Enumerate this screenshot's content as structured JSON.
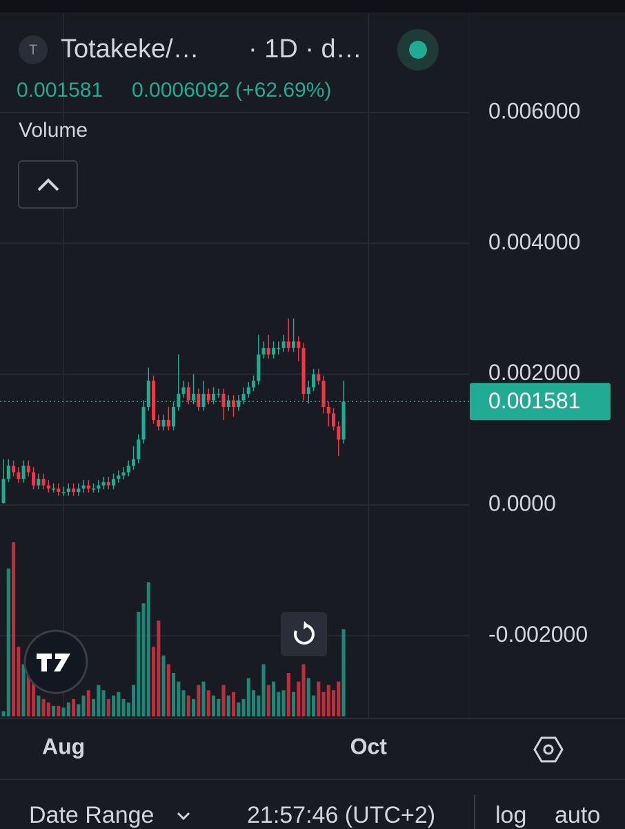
{
  "header": {
    "icon_letter": "T",
    "symbol": "Totakeke/…",
    "interval": "· 1D · d…",
    "change": "0.0006092 (+62.69%)",
    "date_range": "Date Range",
    "time": "21:57:46 (UTC+2)",
    "log": "log",
    "auto": "auto"
  },
  "chart_data": {
    "type": "candlestick",
    "up_color": "#22ab94",
    "down_color": "#f23645",
    "grid": true,
    "last_price": {
      "value": 0.001581,
      "label": "0.001581"
    },
    "x": [
      0,
      1,
      2,
      3,
      4,
      5,
      6,
      7,
      8,
      9,
      10,
      11,
      12,
      13,
      14,
      15,
      16,
      17,
      18,
      19,
      20,
      21,
      22,
      23,
      24,
      25,
      26,
      27,
      28,
      29,
      30,
      31,
      32,
      33,
      34,
      35,
      36,
      37,
      38,
      39,
      40,
      41,
      42,
      43,
      44,
      45,
      46,
      47,
      48,
      49,
      50,
      51,
      52,
      53,
      54,
      55,
      56,
      57,
      58,
      59,
      60,
      61,
      62,
      63,
      64,
      65,
      66,
      67,
      68
    ],
    "xlim": [
      -0.7,
      93.1
    ],
    "xticks": [
      {
        "value": 12,
        "label": "Aug"
      },
      {
        "value": 73,
        "label": "Oct"
      }
    ],
    "ylim": [
      -0.003264,
      0.00751
    ],
    "yticks": [
      {
        "value": 0.006,
        "label": "0.006000"
      },
      {
        "value": 0.004,
        "label": "0.004000"
      },
      {
        "value": 0.002,
        "label": "0.002000"
      },
      {
        "value": 0,
        "label": "0.0000"
      },
      {
        "value": -0.002,
        "label": "-0.002000"
      }
    ],
    "open": [
      3e-05,
      0.0004,
      0.0006,
      0.0005,
      0.0004,
      0.0006,
      0.0005,
      0.0003,
      0.0004,
      0.0003,
      0.00025,
      0.00025,
      0.0002,
      0.0002,
      0.00025,
      0.0002,
      0.00025,
      0.0003,
      0.00025,
      0.00025,
      0.0003,
      0.00035,
      0.0003,
      0.0004,
      0.00045,
      0.0005,
      0.0006,
      0.0007,
      0.001,
      0.0015,
      0.0019,
      0.0013,
      0.0012,
      0.0013,
      0.0012,
      0.0015,
      0.0017,
      0.0018,
      0.0016,
      0.0017,
      0.0015,
      0.0017,
      0.0016,
      0.0017,
      0.0017,
      0.0015,
      0.0016,
      0.0015,
      0.0016,
      0.0017,
      0.0018,
      0.0019,
      0.0023,
      0.0024,
      0.0023,
      0.0024,
      0.0024,
      0.0025,
      0.0024,
      0.0025,
      0.0024,
      0.0017,
      0.0018,
      0.002,
      0.0019,
      0.0015,
      0.0014,
      0.0012,
      0.001
    ],
    "high": [
      0.0007,
      0.0007,
      0.00068,
      0.00058,
      0.00068,
      0.00068,
      0.00058,
      0.00048,
      0.00048,
      0.00038,
      0.00033,
      0.00033,
      0.00028,
      0.00033,
      0.00033,
      0.00033,
      0.00038,
      0.00038,
      0.00033,
      0.00038,
      0.00043,
      0.00043,
      0.00048,
      0.00053,
      0.00058,
      0.00068,
      0.0009,
      0.00108,
      0.0016,
      0.0021,
      0.00198,
      0.00138,
      0.00138,
      0.0015,
      0.00158,
      0.0023,
      0.0019,
      0.00188,
      0.002,
      0.00178,
      0.0019,
      0.00178,
      0.0018,
      0.00178,
      0.00178,
      0.00168,
      0.00168,
      0.00168,
      0.0018,
      0.00188,
      0.00198,
      0.0026,
      0.0025,
      0.0026,
      0.0025,
      0.0025,
      0.0026,
      0.00285,
      0.00285,
      0.00258,
      0.00248,
      0.0019,
      0.00208,
      0.00208,
      0.00198,
      0.00158,
      0.00148,
      0.00128,
      0.0019
    ],
    "low": [
      2e-05,
      0.00035,
      0.00044,
      0.00034,
      0.00034,
      0.00044,
      0.00024,
      0.00024,
      0.00024,
      0.00019,
      0.00019,
      0.00014,
      0.00014,
      0.00014,
      0.00014,
      0.00014,
      0.00019,
      0.00019,
      0.00019,
      0.00019,
      0.00024,
      0.00024,
      0.00024,
      0.00034,
      0.00039,
      0.00044,
      0.00054,
      0.00064,
      0.00094,
      0.00144,
      0.00124,
      0.00114,
      0.00114,
      0.00114,
      0.00114,
      0.00144,
      0.00164,
      0.00154,
      0.00154,
      0.00144,
      0.00144,
      0.00154,
      0.00154,
      0.00164,
      0.0013,
      0.00144,
      0.00135,
      0.00144,
      0.00154,
      0.00164,
      0.00174,
      0.00184,
      0.00224,
      0.00224,
      0.00224,
      0.0023,
      0.00234,
      0.00234,
      0.00234,
      0.0022,
      0.0016,
      0.00155,
      0.00174,
      0.00184,
      0.0014,
      0.0012,
      0.00114,
      0.00075,
      0.00094
    ],
    "close": [
      0.0004,
      0.0006,
      0.0005,
      0.0004,
      0.0006,
      0.0005,
      0.0003,
      0.0004,
      0.0003,
      0.00025,
      0.00025,
      0.0002,
      0.0002,
      0.00025,
      0.0002,
      0.00025,
      0.0003,
      0.00025,
      0.00025,
      0.0003,
      0.00035,
      0.0003,
      0.0004,
      0.00045,
      0.0005,
      0.0006,
      0.0007,
      0.001,
      0.0015,
      0.0019,
      0.0013,
      0.0012,
      0.0013,
      0.0012,
      0.0015,
      0.0017,
      0.0018,
      0.0016,
      0.0017,
      0.0015,
      0.0017,
      0.0016,
      0.0017,
      0.0017,
      0.0015,
      0.0016,
      0.0015,
      0.0016,
      0.0017,
      0.0018,
      0.0019,
      0.0023,
      0.0024,
      0.0023,
      0.0024,
      0.0024,
      0.0025,
      0.0024,
      0.0025,
      0.0024,
      0.0017,
      0.0018,
      0.002,
      0.0019,
      0.0015,
      0.0014,
      0.0012,
      0.001,
      0.001581
    ],
    "volume": {
      "label": "Volume",
      "ylim": [
        0,
        100
      ],
      "values": [
        3,
        85,
        100,
        40,
        30,
        25,
        20,
        12,
        10,
        8,
        6,
        6,
        5,
        8,
        10,
        7,
        12,
        15,
        10,
        18,
        15,
        10,
        12,
        14,
        10,
        8,
        18,
        60,
        65,
        77,
        40,
        55,
        35,
        30,
        25,
        20,
        15,
        12,
        10,
        18,
        20,
        15,
        12,
        10,
        18,
        12,
        14,
        8,
        10,
        22,
        15,
        12,
        30,
        18,
        20,
        14,
        15,
        25,
        14,
        20,
        30,
        22,
        12,
        20,
        14,
        18,
        15,
        20,
        50
      ]
    }
  }
}
